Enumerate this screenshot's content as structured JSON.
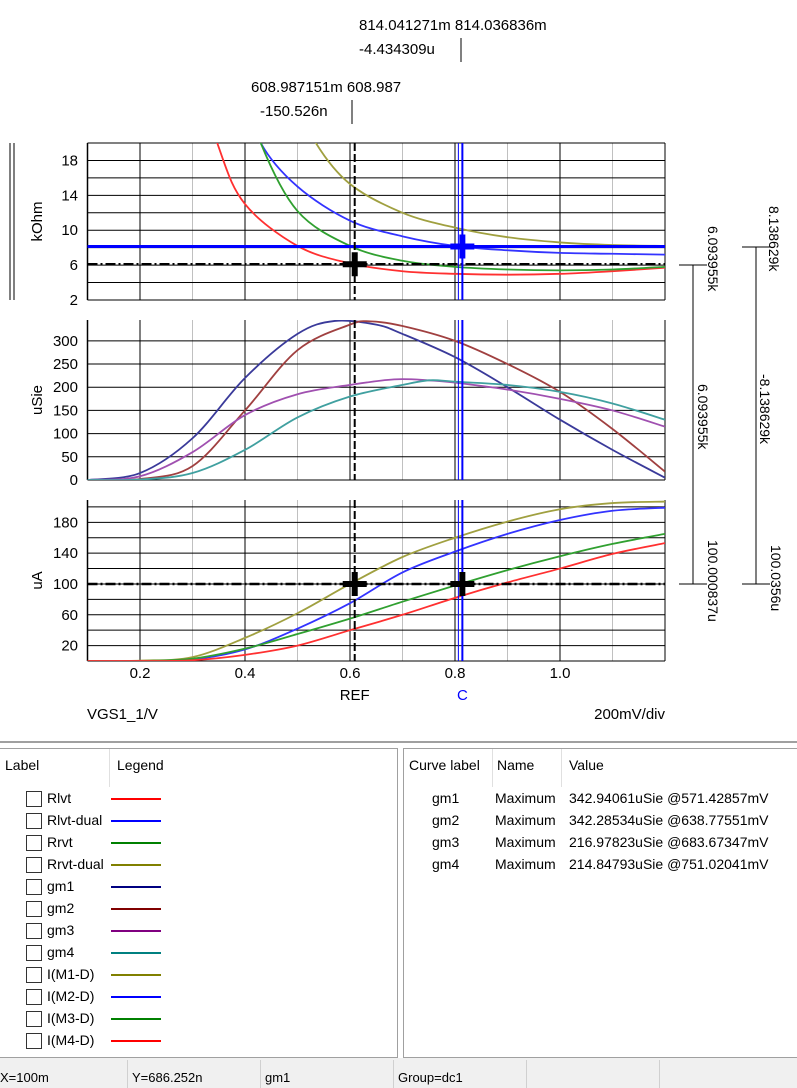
{
  "chart_data": {
    "type": "line",
    "x_label": "VGS1_1/V",
    "x_scale_label": "200mV/div",
    "xlim": [
      0.1,
      1.2
    ],
    "x_ticks": [
      "0.2",
      "0.4",
      "0.6",
      "0.8",
      "1.0"
    ],
    "x_tick_values": [
      0.2,
      0.4,
      0.6,
      0.8,
      1.0
    ],
    "grid": true,
    "panels": [
      {
        "ylabel": "kOhm",
        "ylim": [
          2,
          20
        ],
        "y_grid_step": 2,
        "y_ticks": [
          "18",
          "14",
          "10",
          "6",
          "2"
        ],
        "y_tick_values": [
          18,
          14,
          10,
          6,
          2
        ],
        "series": [
          {
            "name": "Rlvt",
            "color": "#ff3030",
            "x": [
              0.3,
              0.35,
              0.4,
              0.5,
              0.6,
              0.7,
              0.8,
              0.9,
              1.0,
              1.1,
              1.2
            ],
            "y": [
              30,
              19.5,
              13,
              8.2,
              6.2,
              5.3,
              5.0,
              4.9,
              5.0,
              5.3,
              5.7
            ]
          },
          {
            "name": "Rlvt-dual",
            "color": "#3333ff",
            "x": [
              0.4,
              0.43,
              0.5,
              0.6,
              0.7,
              0.8,
              0.9,
              1.0,
              1.1,
              1.2
            ],
            "y": [
              26,
              20,
              15,
              11.1,
              9.3,
              8.2,
              7.7,
              7.4,
              7.3,
              7.2
            ]
          },
          {
            "name": "Rrvt",
            "color": "#30a030",
            "x": [
              0.4,
              0.43,
              0.5,
              0.6,
              0.7,
              0.8,
              0.9,
              1.0,
              1.1,
              1.2
            ],
            "y": [
              27,
              20,
              12.2,
              8.2,
              6.5,
              5.8,
              5.5,
              5.4,
              5.5,
              5.8
            ]
          },
          {
            "name": "Rrvt-dual",
            "color": "#a0a040",
            "x": [
              0.5,
              0.535,
              0.6,
              0.7,
              0.8,
              0.9,
              1.0,
              1.1,
              1.2
            ],
            "y": [
              25,
              20,
              15.3,
              12,
              10.3,
              9.2,
              8.6,
              8.3,
              8.2
            ]
          }
        ],
        "hcursors": [
          {
            "value": 6.093955,
            "color": "#000000",
            "style": "dashdot"
          },
          {
            "value": 8.138629,
            "color": "#0000ff",
            "style": "solid"
          }
        ],
        "markers": [
          {
            "x": 0.609,
            "y": 6.094,
            "color": "#000000"
          },
          {
            "x": 0.814,
            "y": 8.139,
            "color": "#0000ff"
          }
        ]
      },
      {
        "ylabel": "uSie",
        "ylim": [
          0,
          345
        ],
        "y_grid_step": 50,
        "y_ticks": [
          "300",
          "250",
          "200",
          "150",
          "100",
          "50",
          "0"
        ],
        "y_tick_values": [
          300,
          250,
          200,
          150,
          100,
          50,
          0
        ],
        "series": [
          {
            "name": "gm1",
            "color": "#3a3a9a",
            "x": [
              0.1,
              0.2,
              0.3,
              0.4,
              0.5,
              0.571,
              0.65,
              0.7,
              0.8,
              0.9,
              1.0,
              1.1,
              1.2
            ],
            "y": [
              0,
              15,
              90,
              220,
              315,
              343,
              335,
              315,
              265,
              200,
              130,
              65,
              5
            ]
          },
          {
            "name": "gm2",
            "color": "#a04040",
            "x": [
              0.1,
              0.2,
              0.3,
              0.4,
              0.5,
              0.6,
              0.639,
              0.7,
              0.8,
              0.9,
              1.0,
              1.1,
              1.2
            ],
            "y": [
              0,
              2,
              30,
              150,
              280,
              335,
              342,
              332,
              300,
              250,
              190,
              110,
              18
            ]
          },
          {
            "name": "gm3",
            "color": "#a050b0",
            "x": [
              0.1,
              0.2,
              0.3,
              0.4,
              0.5,
              0.6,
              0.684,
              0.75,
              0.8,
              0.9,
              1.0,
              1.1,
              1.2
            ],
            "y": [
              0,
              8,
              60,
              140,
              185,
              205,
              217,
              215,
              210,
              195,
              175,
              150,
              115
            ]
          },
          {
            "name": "gm4",
            "color": "#40a0a0",
            "x": [
              0.1,
              0.2,
              0.3,
              0.4,
              0.5,
              0.6,
              0.7,
              0.751,
              0.8,
              0.9,
              1.0,
              1.1,
              1.2
            ],
            "y": [
              0,
              1,
              15,
              65,
              135,
              180,
              205,
              215,
              212,
              205,
              190,
              165,
              130
            ]
          }
        ]
      },
      {
        "ylabel": "uA",
        "ylim": [
          0,
          209
        ],
        "y_grid_step": 20,
        "y_ticks": [
          "180",
          "140",
          "100",
          "60",
          "20"
        ],
        "y_tick_values": [
          180,
          140,
          100,
          60,
          20
        ],
        "series": [
          {
            "name": "I(M1-D)",
            "color": "#a0a040",
            "x": [
              0.1,
              0.2,
              0.3,
              0.4,
              0.5,
              0.6,
              0.7,
              0.8,
              0.9,
              1.0,
              1.1,
              1.2
            ],
            "y": [
              0,
              0.5,
              5,
              30,
              62,
              100,
              135,
              160,
              181,
              197,
              205,
              207
            ]
          },
          {
            "name": "I(M2-D)",
            "color": "#3333ff",
            "x": [
              0.1,
              0.2,
              0.3,
              0.4,
              0.5,
              0.6,
              0.7,
              0.8,
              0.9,
              1.0,
              1.1,
              1.2
            ],
            "y": [
              0,
              0,
              2,
              15,
              42,
              75,
              115,
              142,
              165,
              183,
              195,
              199
            ]
          },
          {
            "name": "I(M3-D)",
            "color": "#30a030",
            "x": [
              0.1,
              0.2,
              0.3,
              0.4,
              0.5,
              0.6,
              0.7,
              0.8,
              0.9,
              1.0,
              1.1,
              1.2
            ],
            "y": [
              0,
              0,
              3,
              16,
              35,
              55,
              77,
              98,
              118,
              136,
              152,
              165
            ]
          },
          {
            "name": "I(M4-D)",
            "color": "#ff3030",
            "x": [
              0.1,
              0.2,
              0.3,
              0.4,
              0.5,
              0.6,
              0.7,
              0.8,
              0.9,
              1.0,
              1.1,
              1.2
            ],
            "y": [
              0,
              0,
              1,
              8,
              20,
              40,
              60,
              82,
              102,
              120,
              139,
              153
            ]
          }
        ],
        "hcursors": [
          {
            "value": 100.000837,
            "color": "#000000",
            "style": "dashdot"
          }
        ],
        "markers": [
          {
            "x": 0.609,
            "y": 100,
            "color": "#000000"
          },
          {
            "x": 0.814,
            "y": 100,
            "color": "#000000"
          }
        ]
      }
    ],
    "vcursors": [
      {
        "label": "REF",
        "x": 0.608987,
        "color": "#000000",
        "style": "dashed"
      },
      {
        "label": "C",
        "x": 0.814041,
        "color": "#0000ff",
        "style": "solid"
      }
    ],
    "annotations": {
      "c_line1": "814.041271m 814.036836m",
      "c_line2": "-4.434309u",
      "ref_line1": "608.987151m 608.987",
      "ref_line2": "-150.526n",
      "delta_ref_top": "6.093955k",
      "delta_ref_mid": "6.093955k",
      "delta_ref_bottom": "100.000837u",
      "delta_c_top": "8.138629k",
      "delta_c_mid": "-8.138629k",
      "delta_c_bottom": "100.0356u"
    }
  },
  "legend_panel": {
    "headers": [
      "Label",
      "Legend"
    ],
    "items": [
      {
        "label": "Rlvt",
        "color": "#ff0000"
      },
      {
        "label": "Rlvt-dual",
        "color": "#0000ff"
      },
      {
        "label": "Rrvt",
        "color": "#008000"
      },
      {
        "label": "Rrvt-dual",
        "color": "#808000"
      },
      {
        "label": "gm1",
        "color": "#000080"
      },
      {
        "label": "gm2",
        "color": "#800000"
      },
      {
        "label": "gm3",
        "color": "#800080"
      },
      {
        "label": "gm4",
        "color": "#008080"
      },
      {
        "label": "I(M1-D)",
        "color": "#808000"
      },
      {
        "label": "I(M2-D)",
        "color": "#0000ff"
      },
      {
        "label": "I(M3-D)",
        "color": "#008000"
      },
      {
        "label": "I(M4-D)",
        "color": "#ff0000"
      }
    ]
  },
  "measure_panel": {
    "headers": [
      "Curve label",
      "Name",
      "Value"
    ],
    "rows": [
      {
        "curve": "gm1",
        "name": "Maximum",
        "value": "342.94061uSie @571.42857mV"
      },
      {
        "curve": "gm2",
        "name": "Maximum",
        "value": "342.28534uSie @638.77551mV"
      },
      {
        "curve": "gm3",
        "name": "Maximum",
        "value": "216.97823uSie @683.67347mV"
      },
      {
        "curve": "gm4",
        "name": "Maximum",
        "value": "214.84793uSie @751.02041mV"
      }
    ]
  },
  "status_bar": {
    "x": "X=100m",
    "y": "Y=686.252n",
    "curve": "gm1",
    "group": "Group=dc1"
  }
}
